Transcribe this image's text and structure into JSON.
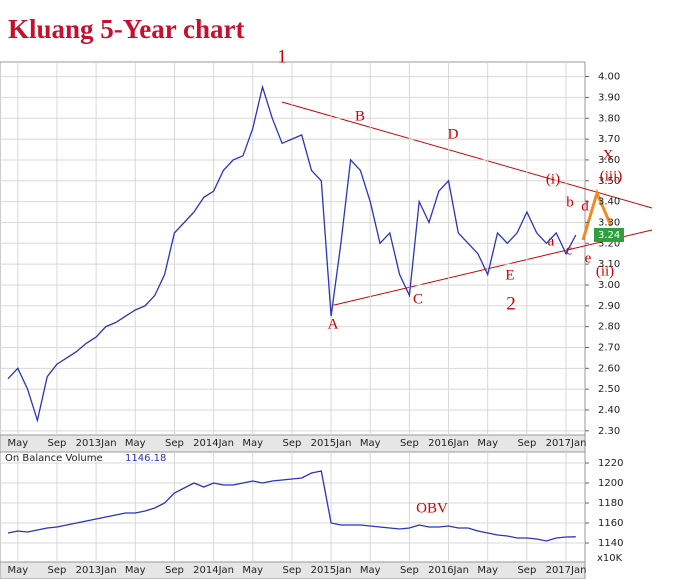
{
  "chart_data": [
    {
      "type": "line",
      "title": "Kluang 5-Year chart",
      "categories": [
        null,
        "May",
        null,
        null,
        null,
        "Sep",
        null,
        null,
        null,
        "2013Jan",
        null,
        null,
        null,
        "May",
        null,
        null,
        null,
        "Sep",
        null,
        null,
        null,
        "2014Jan",
        null,
        null,
        null,
        "May",
        null,
        null,
        null,
        "Sep",
        null,
        null,
        null,
        "2015Jan",
        null,
        null,
        null,
        "May",
        null,
        null,
        null,
        "Sep",
        null,
        null,
        null,
        "2016Jan",
        null,
        null,
        null,
        "May",
        null,
        null,
        null,
        "Sep",
        null,
        null,
        null,
        "2017Jan",
        null
      ],
      "values": [
        2.55,
        2.6,
        2.5,
        2.35,
        2.56,
        2.62,
        2.65,
        2.68,
        2.72,
        2.75,
        2.8,
        2.82,
        2.85,
        2.88,
        2.9,
        2.95,
        3.05,
        3.25,
        3.3,
        3.35,
        3.42,
        3.45,
        3.55,
        3.6,
        3.62,
        3.75,
        3.95,
        3.8,
        3.68,
        3.7,
        3.72,
        3.55,
        3.5,
        2.85,
        3.2,
        3.6,
        3.55,
        3.4,
        3.2,
        3.25,
        3.05,
        2.95,
        3.4,
        3.3,
        3.45,
        3.5,
        3.25,
        3.2,
        3.15,
        3.05,
        3.25,
        3.2,
        3.25,
        3.35,
        3.25,
        3.2,
        3.25,
        3.15,
        3.24
      ],
      "color": "#2a35b8",
      "current_value": 3.24,
      "ylim": [
        2.28,
        4.07
      ],
      "yticks": [
        {
          "value": 2.3,
          "label": "2.30"
        },
        {
          "value": 2.4,
          "label": "2.40"
        },
        {
          "value": 2.5,
          "label": "2.50"
        },
        {
          "value": 2.6,
          "label": "2.60"
        },
        {
          "value": 2.7,
          "label": "2.70"
        },
        {
          "value": 2.8,
          "label": "2.80"
        },
        {
          "value": 2.9,
          "label": "2.90"
        },
        {
          "value": 3,
          "label": "3.00"
        },
        {
          "value": 3.1,
          "label": "3.10"
        },
        {
          "value": 3.2,
          "label": "3.20"
        },
        {
          "value": 3.3,
          "label": "3.30"
        },
        {
          "value": 3.4,
          "label": "3.40"
        },
        {
          "value": 3.5,
          "label": "3.50"
        },
        {
          "value": 3.6,
          "label": "3.60"
        },
        {
          "value": 3.7,
          "label": "3.70"
        },
        {
          "value": 3.8,
          "label": "3.80"
        },
        {
          "value": 3.9,
          "label": "3.90"
        },
        {
          "value": 4,
          "label": "4.00"
        }
      ],
      "grid": true,
      "annotations": [
        "1",
        "B",
        "D",
        "X",
        "(i)",
        "(iii)",
        "b",
        "d",
        "a",
        "c",
        "e",
        "(ii)",
        "E",
        "2",
        "C",
        "A"
      ]
    },
    {
      "type": "line",
      "legend_label": "On Balance Volume",
      "last_value": 1146.18,
      "unit_label": "x10K",
      "categories": [
        null,
        "May",
        null,
        null,
        null,
        "Sep",
        null,
        null,
        null,
        "2013Jan",
        null,
        null,
        null,
        "May",
        null,
        null,
        null,
        "Sep",
        null,
        null,
        null,
        "2014Jan",
        null,
        null,
        null,
        "May",
        null,
        null,
        null,
        "Sep",
        null,
        null,
        null,
        "2015Jan",
        null,
        null,
        null,
        "May",
        null,
        null,
        null,
        "Sep",
        null,
        null,
        null,
        "2016Jan",
        null,
        null,
        null,
        "May",
        null,
        null,
        null,
        "Sep",
        null,
        null,
        null,
        "2017Jan",
        null
      ],
      "values": [
        1150,
        1152,
        1151,
        1153,
        1155,
        1156,
        1158,
        1160,
        1162,
        1164,
        1166,
        1168,
        1170,
        1170,
        1172,
        1175,
        1180,
        1190,
        1195,
        1200,
        1196,
        1200,
        1198,
        1198,
        1200,
        1202,
        1200,
        1202,
        1203,
        1204,
        1205,
        1210,
        1212,
        1160,
        1158,
        1158,
        1158,
        1157,
        1156,
        1155,
        1154,
        1155,
        1158,
        1156,
        1156,
        1157,
        1155,
        1155,
        1152,
        1150,
        1148,
        1147,
        1145,
        1145,
        1144,
        1142,
        1145,
        1146,
        1146.18
      ],
      "color": "#2a35b8",
      "ylim": [
        1121,
        1231
      ],
      "yticks": [
        1140,
        1160,
        1180,
        1200,
        1220
      ],
      "grid": true,
      "annotations": [
        "OBV"
      ]
    }
  ]
}
